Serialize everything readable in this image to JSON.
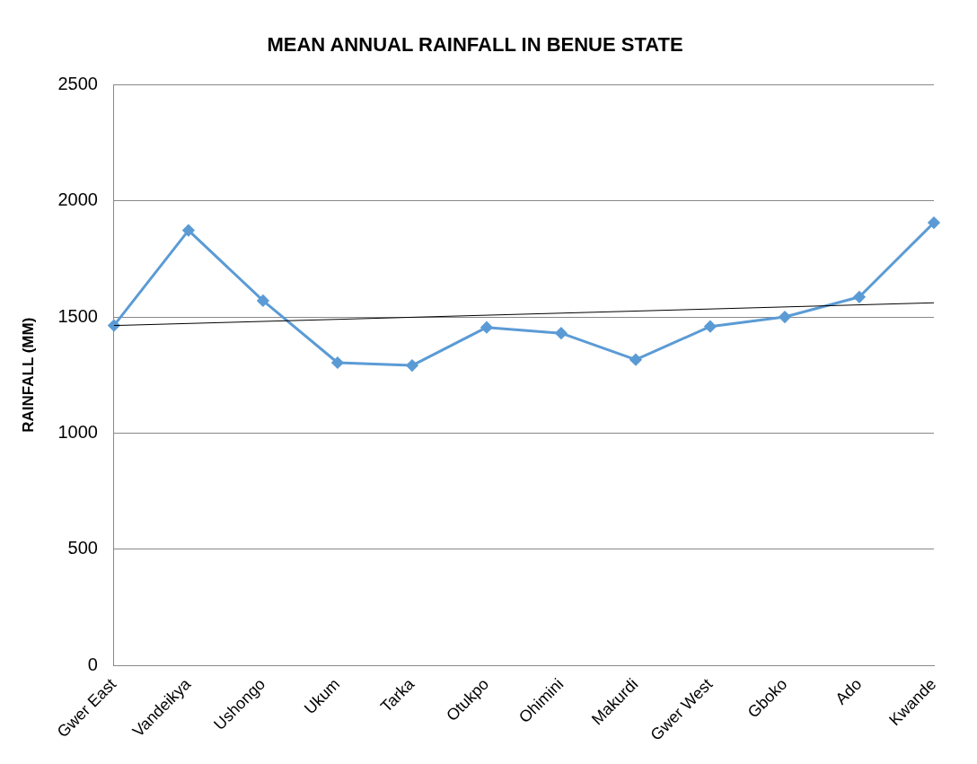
{
  "chart_data": {
    "type": "line",
    "title": "MEAN ANNUAL RAINFALL IN BENUE STATE",
    "ylabel": "RAINFALL (MM)",
    "categories": [
      "Gwer East",
      "Vandeikya",
      "Ushongo",
      "Ukum",
      "Tarka",
      "Otukpo",
      "Ohimini",
      "Makurdi",
      "Gwer West",
      "Gboko",
      "Ado",
      "Kwande"
    ],
    "series": [
      {
        "color": "#5b9bd5",
        "values": [
          1463,
          1873,
          1570,
          1303,
          1291,
          1455,
          1430,
          1316,
          1459,
          1500,
          1586,
          1906
        ],
        "marker": "diamond"
      },
      {
        "type": "line",
        "color": "#000000",
        "x": [
          "Gwer East",
          "Kwande"
        ],
        "values": [
          1463,
          1561
        ],
        "marker": "none"
      }
    ],
    "ylim": [
      0,
      2500
    ],
    "yticks": [
      0,
      500,
      1000,
      1500,
      2000,
      2500
    ],
    "grid": "y",
    "legend": false,
    "line_style": "solid"
  }
}
